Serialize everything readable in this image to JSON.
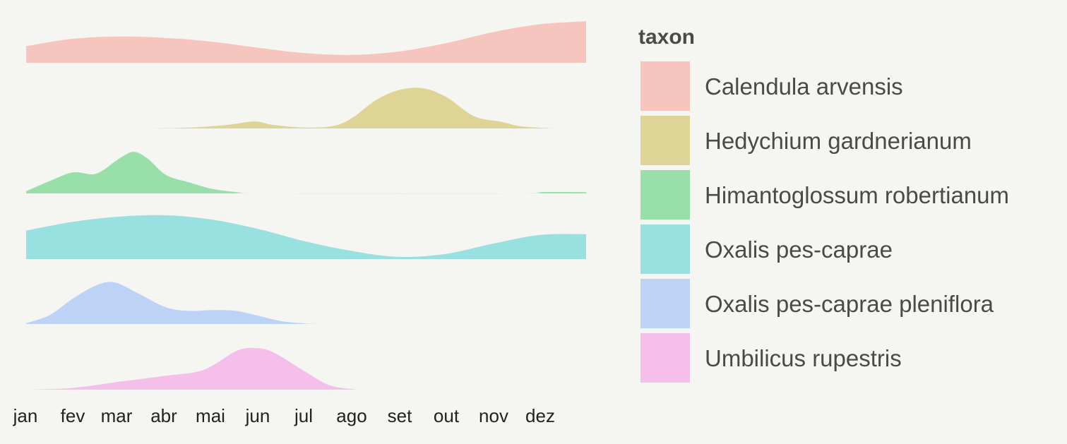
{
  "chart_data": {
    "type": "area",
    "subtype": "ridgeline-density",
    "x_ticks": [
      "jan",
      "fev",
      "mar",
      "abr",
      "mai",
      "jun",
      "jul",
      "ago",
      "set",
      "out",
      "nov",
      "dez"
    ],
    "x_range": [
      1,
      13
    ],
    "legend": {
      "title": "taxon",
      "position": "right"
    },
    "series": [
      {
        "name": "Calendula arvensis",
        "color": "#f8766d",
        "x": [
          1.0,
          2.0,
          3.0,
          4.0,
          5.0,
          6.0,
          7.0,
          8.0,
          9.0,
          10.0,
          11.0,
          12.0,
          13.0
        ],
        "density": [
          0.38,
          0.55,
          0.6,
          0.57,
          0.48,
          0.34,
          0.22,
          0.18,
          0.26,
          0.45,
          0.7,
          0.88,
          0.95
        ]
      },
      {
        "name": "Hedychium gardnerianum",
        "color": "#b79f00",
        "x": [
          3.6,
          4.5,
          5.3,
          5.9,
          6.3,
          7.0,
          7.6,
          8.0,
          8.5,
          9.0,
          9.5,
          10.0,
          10.6,
          11.2,
          11.6,
          12.3
        ],
        "density": [
          0.0,
          0.02,
          0.08,
          0.16,
          0.08,
          0.02,
          0.06,
          0.25,
          0.65,
          0.88,
          0.92,
          0.72,
          0.28,
          0.15,
          0.05,
          0.0
        ]
      },
      {
        "name": "Himantoglossum robertianum",
        "color": "#00ba38",
        "x": [
          1.0,
          1.5,
          2.0,
          2.5,
          3.0,
          3.3,
          3.6,
          4.0,
          4.5,
          5.0,
          5.6,
          6.0,
          11.5,
          12.0,
          13.0
        ],
        "density": [
          0.05,
          0.28,
          0.48,
          0.45,
          0.8,
          0.95,
          0.8,
          0.42,
          0.25,
          0.1,
          0.02,
          0.0,
          0.0,
          0.03,
          0.03
        ]
      },
      {
        "name": "Oxalis pes-caprae",
        "color": "#00bfc4",
        "x": [
          1.0,
          2.0,
          3.0,
          4.0,
          5.0,
          6.0,
          7.0,
          8.0,
          9.0,
          10.0,
          11.0,
          12.0,
          13.0
        ],
        "density": [
          0.65,
          0.85,
          0.97,
          1.0,
          0.9,
          0.68,
          0.4,
          0.18,
          0.05,
          0.12,
          0.35,
          0.55,
          0.57
        ]
      },
      {
        "name": "Oxalis pes-caprae pleniflora",
        "color": "#619cff",
        "x": [
          1.0,
          1.5,
          2.0,
          2.5,
          2.9,
          3.4,
          4.0,
          4.5,
          5.0,
          5.5,
          6.0,
          6.5,
          7.0,
          7.3
        ],
        "density": [
          0.02,
          0.2,
          0.58,
          0.88,
          0.95,
          0.7,
          0.38,
          0.3,
          0.32,
          0.3,
          0.18,
          0.06,
          0.01,
          0.0
        ]
      },
      {
        "name": "Umbilicus rupestris",
        "color": "#f564e3",
        "x": [
          1.1,
          2.0,
          3.0,
          4.0,
          4.8,
          5.5,
          5.9,
          6.3,
          7.0,
          7.5,
          8.0,
          8.3
        ],
        "density": [
          0.0,
          0.04,
          0.18,
          0.32,
          0.45,
          0.88,
          0.95,
          0.85,
          0.4,
          0.1,
          0.01,
          0.0
        ]
      }
    ]
  }
}
